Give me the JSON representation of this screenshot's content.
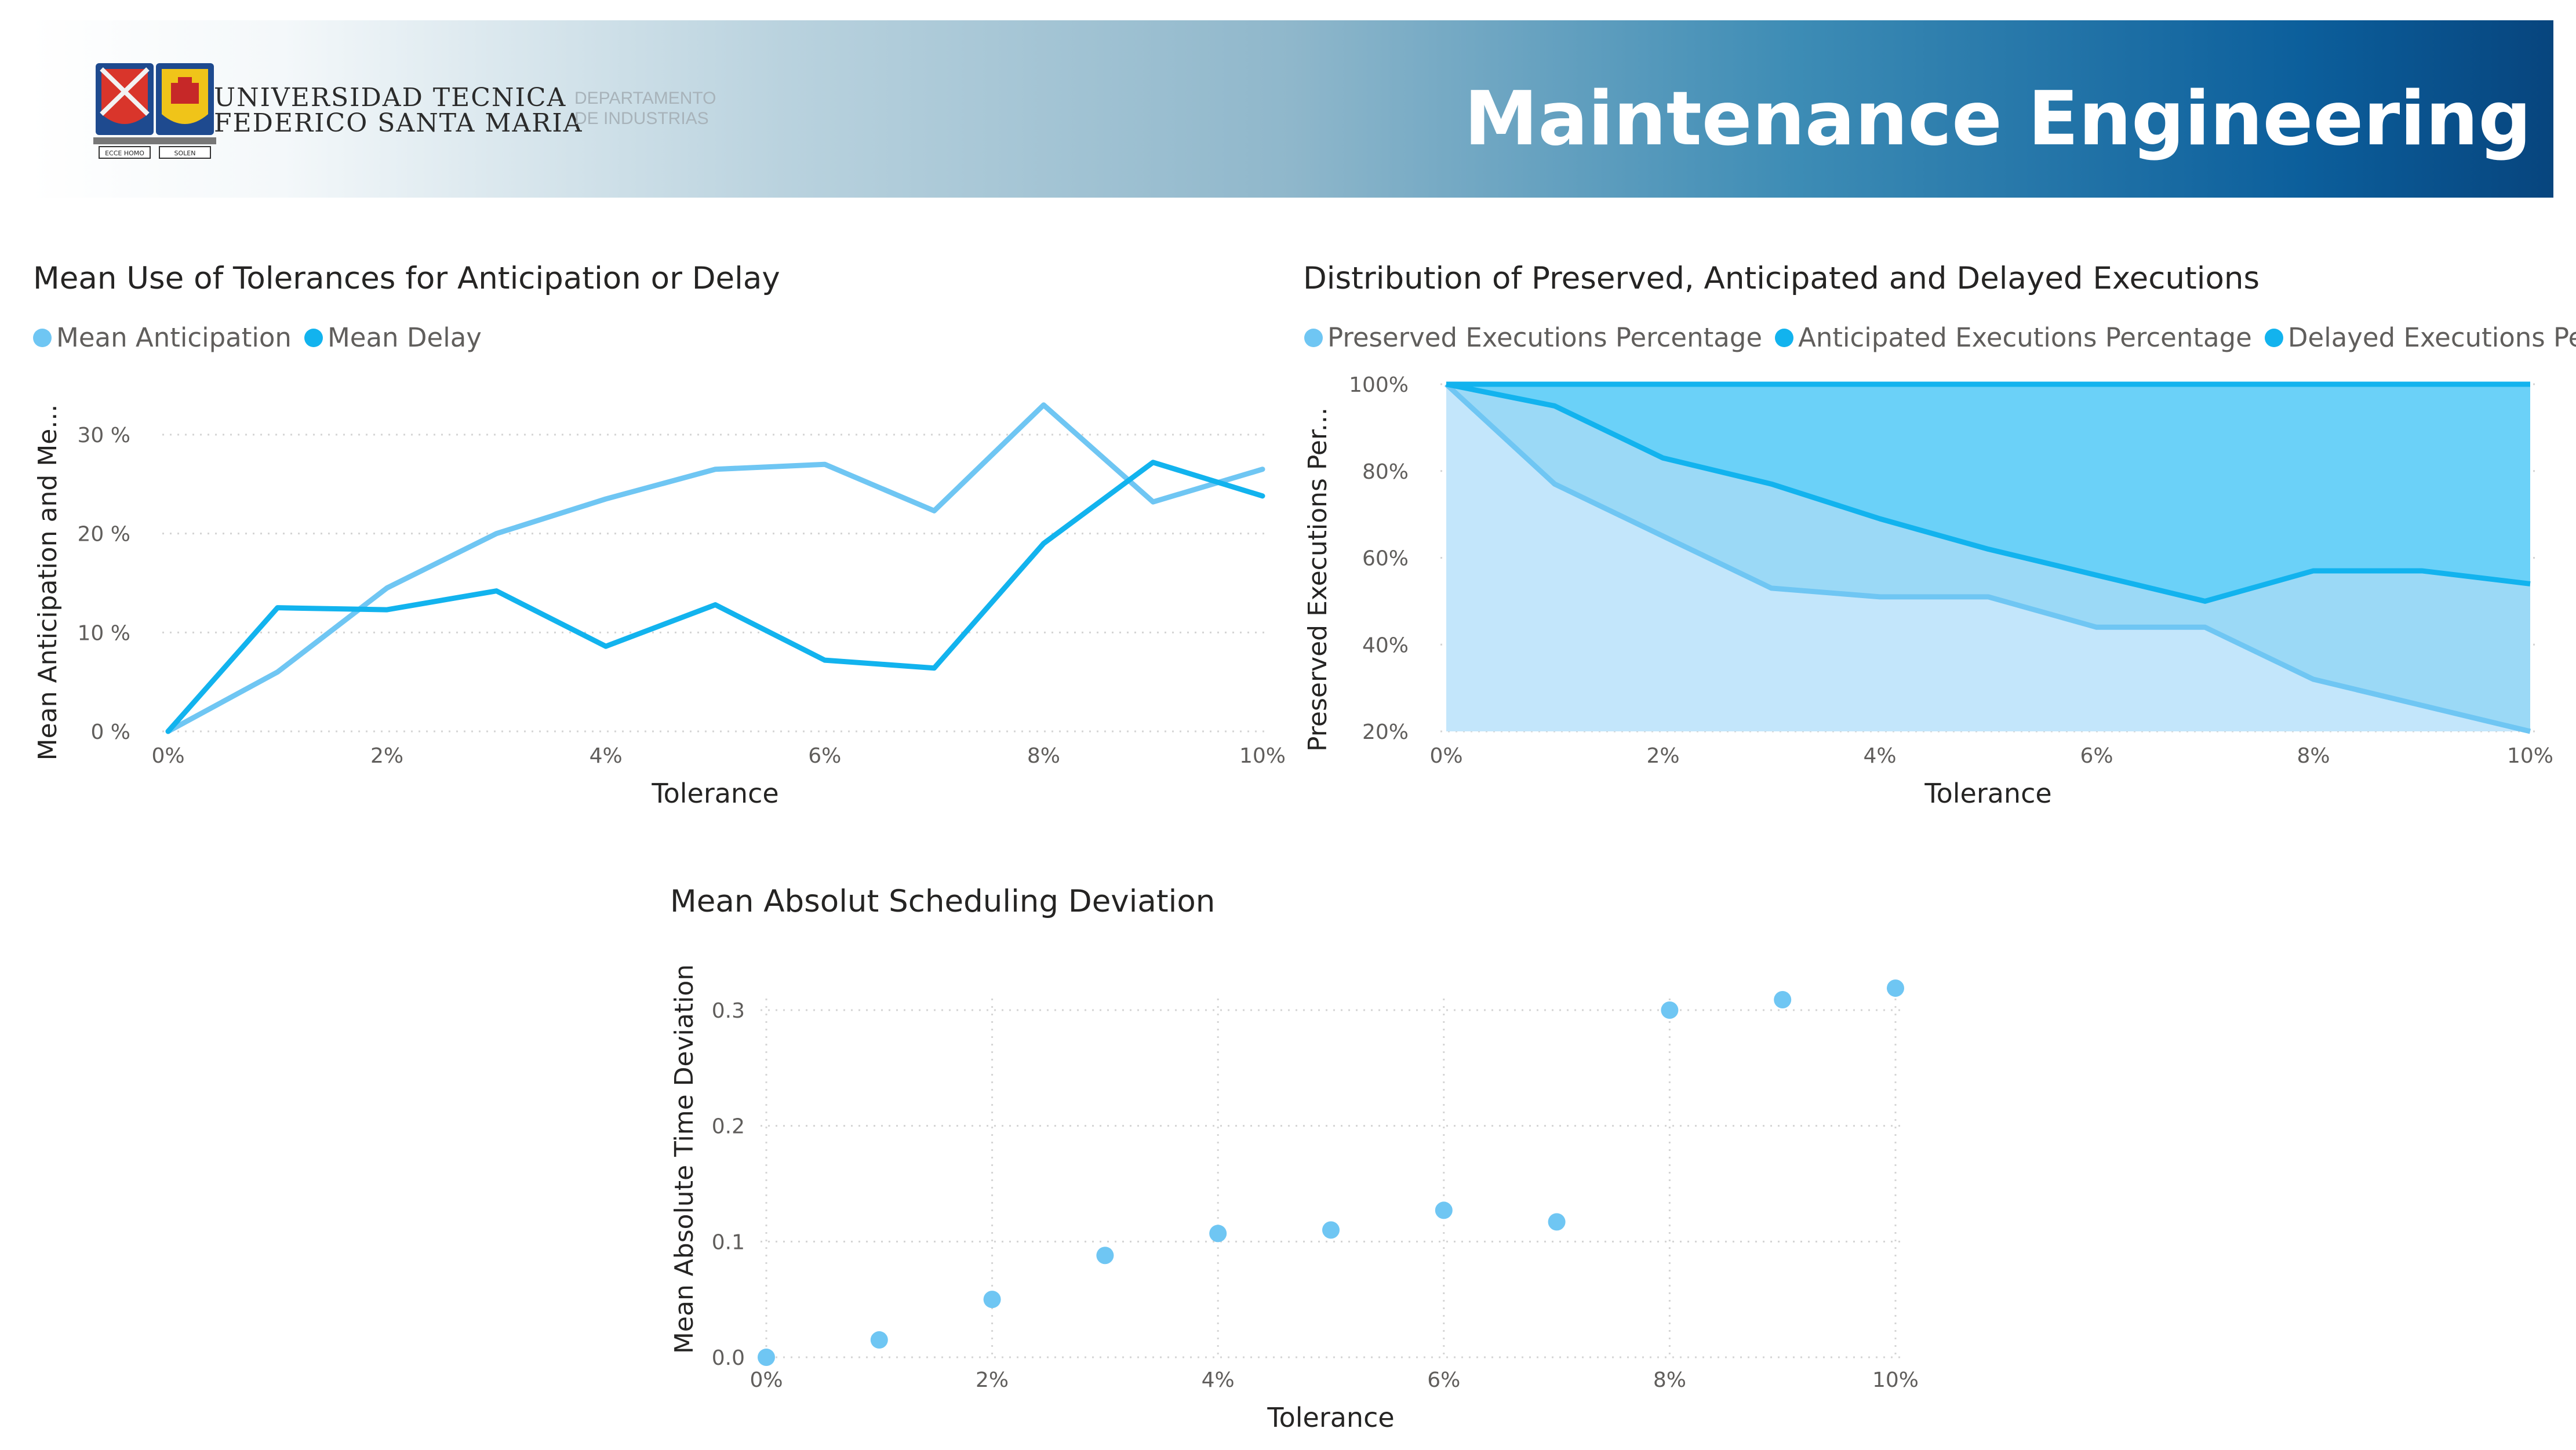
{
  "header": {
    "university_line1": "UNIVERSIDAD TECNICA",
    "university_line2": "FEDERICO SANTA MARIA",
    "department_line1": "DEPARTAMENTO",
    "department_line2": "DE INDUSTRIAS",
    "title": "Maintenance Engineering",
    "crest_mottos": [
      "ECCE HOMO",
      "SOLEN"
    ]
  },
  "colors": {
    "light_blue": "#6fc6f3",
    "dark_blue": "#12b3ee",
    "area_light": "#c3e6fb",
    "area_mid": "#9bd9f6",
    "area_dark": "#6bd1f8",
    "grid": "#d4d4d4",
    "header_dark": "#07457e"
  },
  "chart_data": [
    {
      "type": "line",
      "title": "Mean Use of Tolerances for Anticipation or Delay",
      "xlabel": "Tolerance",
      "ylabel": "Mean Anticipation and Me...",
      "x": [
        0,
        1,
        2,
        3,
        4,
        5,
        6,
        7,
        8,
        9,
        10
      ],
      "x_ticks": [
        "0%",
        "2%",
        "4%",
        "6%",
        "8%",
        "10%"
      ],
      "y_ticks": [
        "0 %",
        "10 %",
        "20 %",
        "30 %"
      ],
      "ylim": [
        0,
        30
      ],
      "series": [
        {
          "name": "Mean Anticipation",
          "color": "#6fc6f3",
          "values": [
            0,
            6,
            14.5,
            20,
            23.5,
            26.5,
            27,
            22.3,
            33,
            23.2,
            26.5
          ]
        },
        {
          "name": "Mean Delay",
          "color": "#12b3ee",
          "values": [
            0,
            12.5,
            12.3,
            14.2,
            8.6,
            12.8,
            7.2,
            6.4,
            19,
            27.2,
            23.8
          ]
        }
      ]
    },
    {
      "type": "area",
      "stacked": true,
      "title": "Distribution of Preserved, Anticipated and Delayed Executions",
      "xlabel": "Tolerance",
      "ylabel": "Preserved Executions Per...",
      "x": [
        0,
        1,
        2,
        3,
        4,
        5,
        6,
        7,
        8,
        9,
        10
      ],
      "x_ticks": [
        "0%",
        "2%",
        "4%",
        "6%",
        "8%",
        "10%"
      ],
      "y_ticks": [
        "20%",
        "40%",
        "60%",
        "80%",
        "100%"
      ],
      "ylim": [
        20,
        100
      ],
      "series": [
        {
          "name": "Preserved Executions Percentage",
          "color": "#6fc6f3",
          "cumulative": [
            100,
            77,
            65,
            53,
            51,
            51,
            44,
            44,
            32,
            26,
            20
          ]
        },
        {
          "name": "Anticipated Executions Percentage",
          "color": "#12b3ee",
          "cumulative": [
            100,
            95,
            83,
            77,
            69,
            62,
            56,
            50,
            57,
            57,
            54
          ]
        },
        {
          "name": "Delayed Executions Percentage",
          "legend_label": "Delayed Executions Percenta...",
          "color": "#12b3ee",
          "cumulative": [
            100,
            100,
            100,
            100,
            100,
            100,
            100,
            100,
            100,
            100,
            100
          ]
        }
      ]
    },
    {
      "type": "scatter",
      "title": "Mean Absolut Scheduling Deviation",
      "xlabel": "Tolerance",
      "ylabel": "Mean Absolute Time Deviation",
      "x": [
        0,
        1,
        2,
        3,
        4,
        5,
        6,
        7,
        8,
        9,
        10
      ],
      "x_ticks": [
        "0%",
        "2%",
        "4%",
        "6%",
        "8%",
        "10%"
      ],
      "y_ticks": [
        "0.0",
        "0.1",
        "0.2",
        "0.3"
      ],
      "ylim": [
        0,
        0.3
      ],
      "series": [
        {
          "name": "Mean Absolute Time Deviation",
          "color": "#6fc6f3",
          "values": [
            0.0,
            0.015,
            0.05,
            0.088,
            0.107,
            0.11,
            0.127,
            0.117,
            0.3,
            0.309,
            0.319
          ]
        }
      ]
    }
  ]
}
